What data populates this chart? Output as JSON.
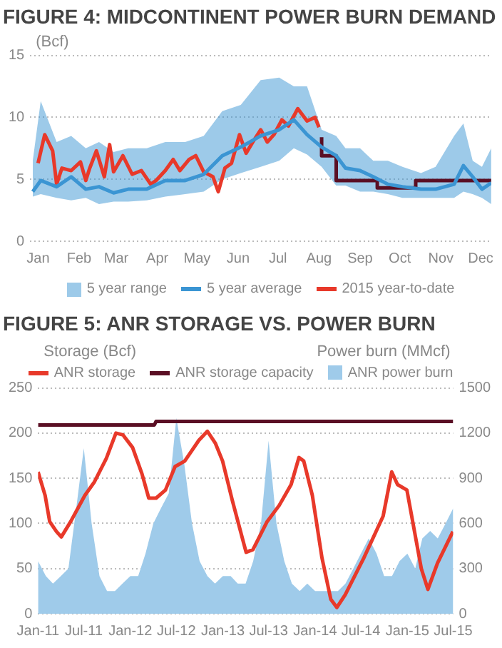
{
  "chart_data": [
    {
      "type": "line",
      "title": "FIGURE 4: MIDCONTINENT POWER BURN DEMAND",
      "ylabel": "(Bcf)",
      "annotations": [
        "5 year range"
      ],
      "xlim": [
        "--01-09",
        "--12-23"
      ],
      "xticks": [
        {
          "value": "--01-15",
          "label": "Jan"
        },
        {
          "value": "--02-15",
          "label": "Feb"
        },
        {
          "value": "--03-15",
          "label": "Mar"
        },
        {
          "value": "--04-15",
          "label": "Apr"
        },
        {
          "value": "--05-15",
          "label": "May"
        },
        {
          "value": "--06-15",
          "label": "Jun"
        },
        {
          "value": "--07-15",
          "label": "Jul"
        },
        {
          "value": "--08-15",
          "label": "Aug"
        },
        {
          "value": "--09-15",
          "label": "Sep"
        },
        {
          "value": "--10-15",
          "label": "Oct"
        },
        {
          "value": "--11-15",
          "label": "Nov"
        },
        {
          "value": "--12-15",
          "label": "Dec"
        }
      ],
      "ylim": [
        0,
        15
      ],
      "yticks": [
        0,
        5,
        10,
        15
      ],
      "grid": "y",
      "legend": "bottom",
      "marker": "none",
      "series": [
        {
          "name": "5 year average",
          "color": "#3b95d3",
          "x": [
            "--01-11",
            "--01-17",
            "--01-29",
            "--02-09",
            "--02-20",
            "--03-02",
            "--03-13",
            "--03-24",
            "--04-07",
            "--04-21",
            "--05-06",
            "--05-20",
            "--06-03",
            "--06-17",
            "--07-02",
            "--07-16",
            "--07-27",
            "--08-06",
            "--08-17",
            "--08-28",
            "--09-04",
            "--09-15",
            "--09-25",
            "--10-06",
            "--10-17",
            "--10-31",
            "--11-11",
            "--11-25",
            "--12-02",
            "--12-09",
            "--12-16",
            "--12-23"
          ],
          "values": [
            4.0,
            4.9,
            4.4,
            5.2,
            4.2,
            4.4,
            3.9,
            4.2,
            4.2,
            4.9,
            4.9,
            5.4,
            6.9,
            7.6,
            8.5,
            9.0,
            9.8,
            8.6,
            7.6,
            6.9,
            5.9,
            5.7,
            5.2,
            4.6,
            4.4,
            4.2,
            4.2,
            4.6,
            6.1,
            5.2,
            4.2,
            4.7
          ],
          "lower": [
            3.6,
            3.8,
            3.5,
            3.3,
            3.5,
            3.0,
            3.2,
            3.2,
            3.3,
            3.6,
            3.8,
            4.0,
            5.0,
            5.5,
            6.0,
            6.5,
            7.5,
            7.0,
            6.0,
            4.5,
            4.5,
            4.0,
            4.0,
            3.8,
            3.5,
            3.5,
            3.5,
            3.5,
            4.0,
            3.8,
            3.5,
            3.0
          ],
          "upper": [
            6.5,
            11.3,
            8.0,
            8.5,
            7.5,
            8.0,
            7.2,
            7.5,
            7.5,
            8.0,
            8.0,
            8.5,
            10.5,
            11.0,
            13.0,
            13.2,
            12.5,
            12.5,
            9.0,
            8.5,
            7.5,
            7.5,
            6.5,
            6.5,
            6.0,
            5.5,
            6.0,
            8.5,
            9.5,
            6.5,
            6.0,
            7.5
          ]
        },
        {
          "name": "2015 year-to-date",
          "color": "#e8392a",
          "x": [
            "--01-15",
            "--01-20",
            "--01-26",
            "--01-29",
            "--02-02",
            "--02-09",
            "--02-16",
            "--02-20",
            "--02-23",
            "--02-28",
            "--03-06",
            "--03-10",
            "--03-13",
            "--03-20",
            "--03-27",
            "--04-03",
            "--04-10",
            "--04-14",
            "--04-21",
            "--04-27",
            "--05-02",
            "--05-09",
            "--05-14",
            "--05-20",
            "--05-27",
            "--05-31",
            "--06-05",
            "--06-10",
            "--06-16",
            "--06-21",
            "--06-26",
            "--07-02",
            "--07-07",
            "--07-12",
            "--07-18",
            "--07-23",
            "--07-30",
            "--08-06",
            "--08-12",
            "--08-15"
          ],
          "values": [
            6.3,
            8.6,
            7.3,
            4.6,
            5.9,
            5.7,
            6.4,
            4.9,
            5.9,
            7.3,
            5.2,
            7.8,
            5.6,
            6.9,
            5.4,
            5.7,
            4.6,
            4.9,
            5.7,
            6.6,
            5.7,
            6.6,
            6.9,
            5.6,
            5.2,
            4.0,
            5.9,
            6.3,
            8.6,
            7.1,
            8.0,
            9.0,
            8.0,
            8.6,
            9.8,
            9.3,
            10.7,
            9.7,
            10.0,
            9.2
          ]
        },
        {
          "type": "step",
          "color": "#5a0f24",
          "x": [
            "--08-17",
            "--08-28",
            "--09-28",
            "--10-27",
            "--11-25",
            "--12-23"
          ],
          "values": [
            8.4,
            6.9,
            4.9,
            4.3,
            4.9,
            4.9
          ]
        }
      ]
    },
    {
      "type": "line",
      "title": "FIGURE 5: ANR STORAGE VS. POWER BURN",
      "ylabel": "Storage (Bcf)",
      "y2label": "Power burn (MMcf)",
      "xlim": [
        "2011-01-01",
        "2015-07-01"
      ],
      "xticks": [
        {
          "value": "2011-01-01",
          "label": "Jan-11"
        },
        {
          "value": "2011-07-01",
          "label": "Jul-11"
        },
        {
          "value": "2012-01-01",
          "label": "Jan-12"
        },
        {
          "value": "2012-07-01",
          "label": "Jul-12"
        },
        {
          "value": "2013-01-01",
          "label": "Jan-13"
        },
        {
          "value": "2013-07-01",
          "label": "Jul-13"
        },
        {
          "value": "2014-01-01",
          "label": "Jan-14"
        },
        {
          "value": "2014-07-01",
          "label": "Jul-14"
        },
        {
          "value": "2015-01-01",
          "label": "Jan-15"
        },
        {
          "value": "2015-07-01",
          "label": "Jul-15"
        }
      ],
      "ylim": [
        0,
        250
      ],
      "yticks": [
        0,
        50,
        100,
        150,
        200,
        250
      ],
      "y2lim": [
        0,
        1500
      ],
      "y2ticks": [
        0,
        300,
        600,
        900,
        1200,
        1500
      ],
      "grid": "y",
      "legend": "top right",
      "marker": "none",
      "series": [
        {
          "name": "ANR storage",
          "color": "#e8392a",
          "x": [
            "2011-01-01",
            "2011-01-29",
            "2011-02-16",
            "2011-03-15",
            "2011-04-03",
            "2011-05-10",
            "2011-07-05",
            "2011-08-12",
            "2011-09-28",
            "2011-11-05",
            "2011-12-03",
            "2012-01-10",
            "2012-02-16",
            "2012-03-14",
            "2012-04-12",
            "2012-05-19",
            "2012-06-26",
            "2012-08-03",
            "2012-09-28",
            "2012-11-01",
            "2012-12-02",
            "2012-12-31",
            "2013-02-07",
            "2013-04-03",
            "2013-04-30",
            "2013-06-25",
            "2013-08-12",
            "2013-09-28",
            "2013-10-29",
            "2013-11-17",
            "2013-12-21",
            "2014-01-28",
            "2014-03-04",
            "2014-03-28",
            "2014-04-30",
            "2014-07-13",
            "2014-09-27",
            "2014-10-31",
            "2014-11-23",
            "2014-12-30",
            "2015-01-18",
            "2015-02-25",
            "2015-03-23",
            "2015-04-30",
            "2015-06-30"
          ],
          "values": [
            157,
            131,
            102,
            91,
            85,
            102,
            131,
            146,
            172,
            200,
            198,
            184,
            155,
            128,
            128,
            137,
            163,
            169,
            192,
            202,
            189,
            169,
            126,
            68,
            71,
            102,
            120,
            143,
            173,
            169,
            131,
            62,
            16,
            7,
            21,
            62,
            108,
            157,
            143,
            137,
            108,
            50,
            27,
            56,
            91
          ]
        },
        {
          "name": "ANR storage capacity",
          "color": "#5a0f24",
          "x": [
            "2011-01-01",
            "2012-04-05",
            "2012-04-12",
            "2015-07-01"
          ],
          "values": [
            209,
            209,
            213,
            213
          ]
        },
        {
          "name": "ANR power burn",
          "type": "area",
          "axis": "y2",
          "color": "#9fcbea",
          "x": [
            "2011-01",
            "2011-02",
            "2011-03",
            "2011-04",
            "2011-05",
            "2011-06",
            "2011-07",
            "2011-08",
            "2011-09",
            "2011-10",
            "2011-11",
            "2011-12",
            "2012-01",
            "2012-02",
            "2012-03",
            "2012-04",
            "2012-05",
            "2012-06",
            "2012-07",
            "2012-08",
            "2012-09",
            "2012-10",
            "2012-11",
            "2012-12",
            "2013-01",
            "2013-02",
            "2013-03",
            "2013-04",
            "2013-05",
            "2013-06",
            "2013-07",
            "2013-08",
            "2013-09",
            "2013-10",
            "2013-11",
            "2013-12",
            "2014-01",
            "2014-02",
            "2014-03",
            "2014-04",
            "2014-05",
            "2014-06",
            "2014-07",
            "2014-08",
            "2014-09",
            "2014-10",
            "2014-11",
            "2014-12",
            "2015-01",
            "2015-02",
            "2015-03",
            "2015-04",
            "2015-05",
            "2015-06",
            "2015-07"
          ],
          "values": [
            350,
            250,
            200,
            250,
            300,
            700,
            1100,
            600,
            250,
            150,
            150,
            200,
            250,
            250,
            400,
            600,
            700,
            800,
            1300,
            1000,
            600,
            350,
            250,
            200,
            250,
            250,
            200,
            200,
            350,
            600,
            1150,
            600,
            350,
            200,
            150,
            200,
            150,
            150,
            150,
            150,
            200,
            300,
            400,
            500,
            400,
            250,
            250,
            350,
            400,
            300,
            500,
            550,
            500,
            600,
            700
          ]
        }
      ]
    }
  ]
}
